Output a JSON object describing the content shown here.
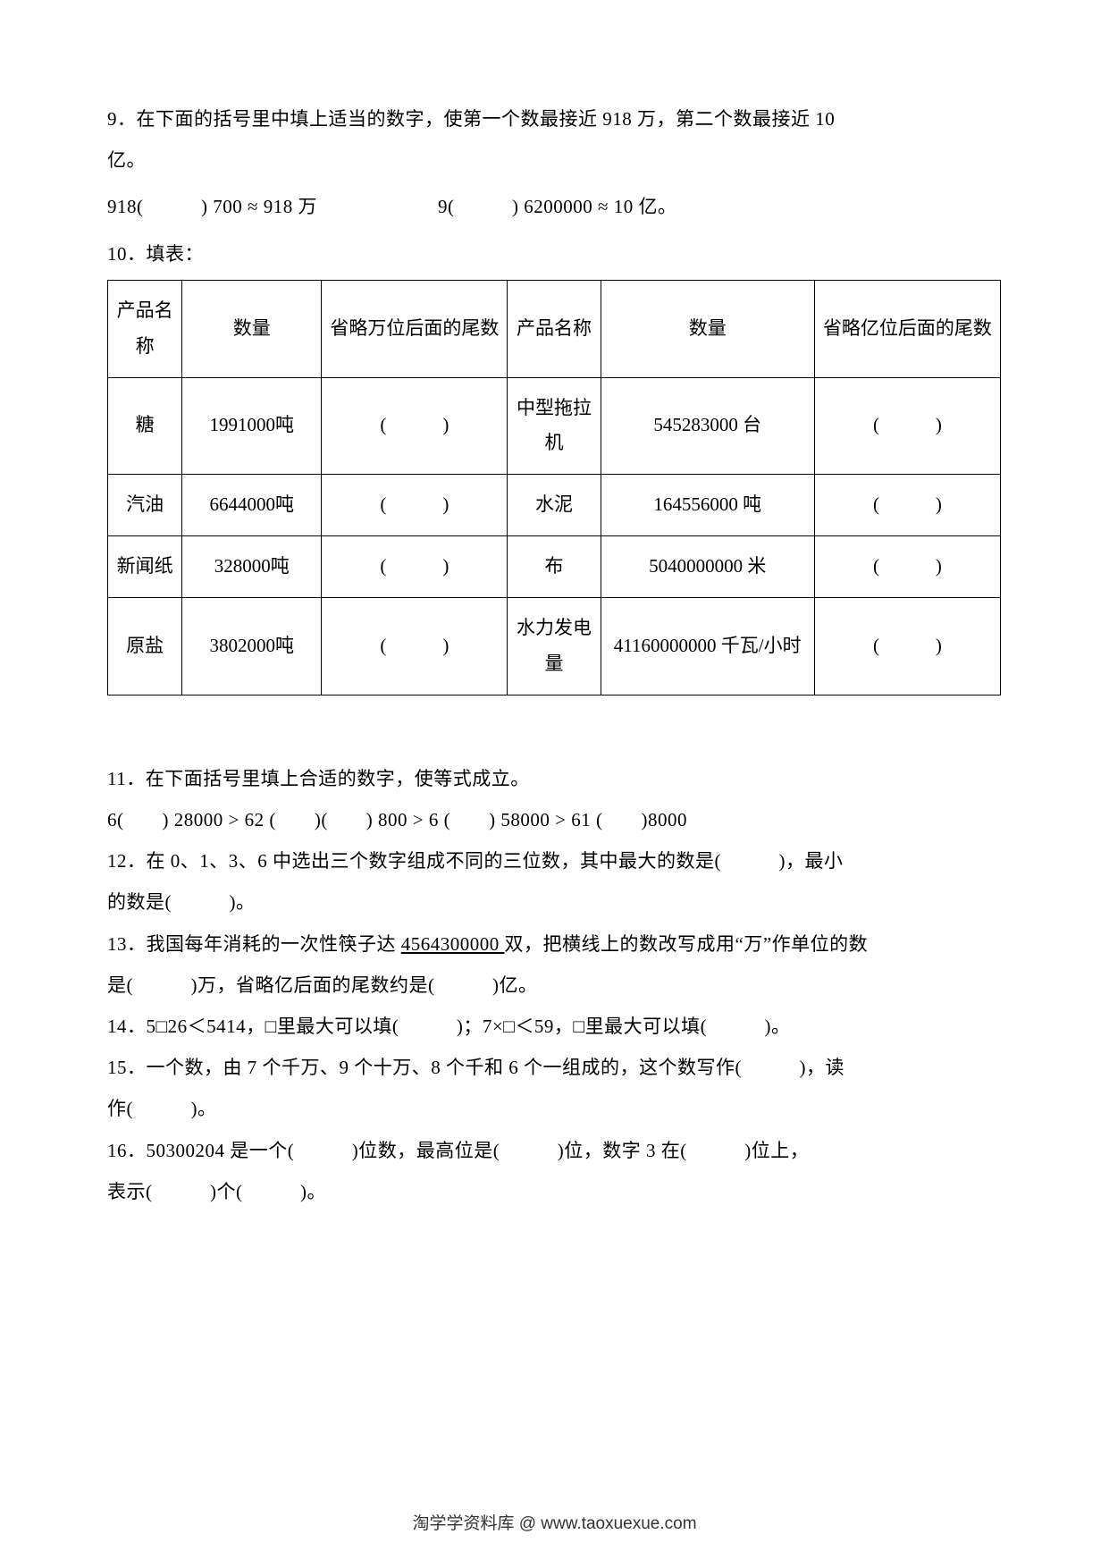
{
  "q9": {
    "text_a": "9．在下面的括号里中填上适当的数字，使第一个数最接近 918 万，第二个数最接近 10",
    "text_b": "亿。",
    "expr1": "918(　　　) 700 ≈ 918 万",
    "expr2": "9(　　　) 6200000 ≈ 10 亿。"
  },
  "q10": {
    "label": "10．填表：",
    "headers": [
      "产品名称",
      "数量",
      "省略万位后面的尾数",
      "产品名称",
      "数量",
      "省略亿位后面的尾数"
    ],
    "blank": "(　　　)",
    "rows": [
      {
        "a": "糖",
        "b": "1991000吨",
        "d": "中型拖拉机",
        "e": "545283000 台"
      },
      {
        "a": "汽油",
        "b": "6644000吨",
        "d": "水泥",
        "e": "164556000 吨"
      },
      {
        "a": "新闻纸",
        "b": "328000吨",
        "d": "布",
        "e": "5040000000 米"
      },
      {
        "a": "原盐",
        "b": "3802000吨",
        "d": "水力发电量",
        "e": "41160000000 千瓦/小时"
      }
    ]
  },
  "q11": {
    "a": "11．在下面括号里填上合适的数字，使等式成立。",
    "b": "6(　　) 28000 > 62 (　　)(　　) 800 > 6 (　　) 58000 > 61 (　　)8000"
  },
  "q12": {
    "a": "12．在 0、1、3、6 中选出三个数字组成不同的三位数，其中最大的数是(　　　)，最小",
    "b": "的数是(　　　)。"
  },
  "q13": {
    "a_pre": "13．我国每年消耗的一次性筷子达 ",
    "a_underline": "4564300000 ",
    "a_post": "双，把横线上的数改写成用“万”作单位的数",
    "b": "是(　　　)万，省略亿后面的尾数约是(　　　)亿。"
  },
  "q14": "14．5□26＜5414，□里最大可以填(　　　)；7×□＜59，□里最大可以填(　　　)。",
  "q15": {
    "a": "15．一个数，由 7 个千万、9 个十万、8 个千和 6 个一组成的，这个数写作(　　　)，读",
    "b": "作(　　　)。"
  },
  "q16": {
    "a": "16．50300204 是一个(　　　)位数，最高位是(　　　)位，数字 3 在(　　　)位上，",
    "b": "表示(　　　)个(　　　)。"
  },
  "footer": "淘学学资料库 @ www.taoxuexue.com"
}
